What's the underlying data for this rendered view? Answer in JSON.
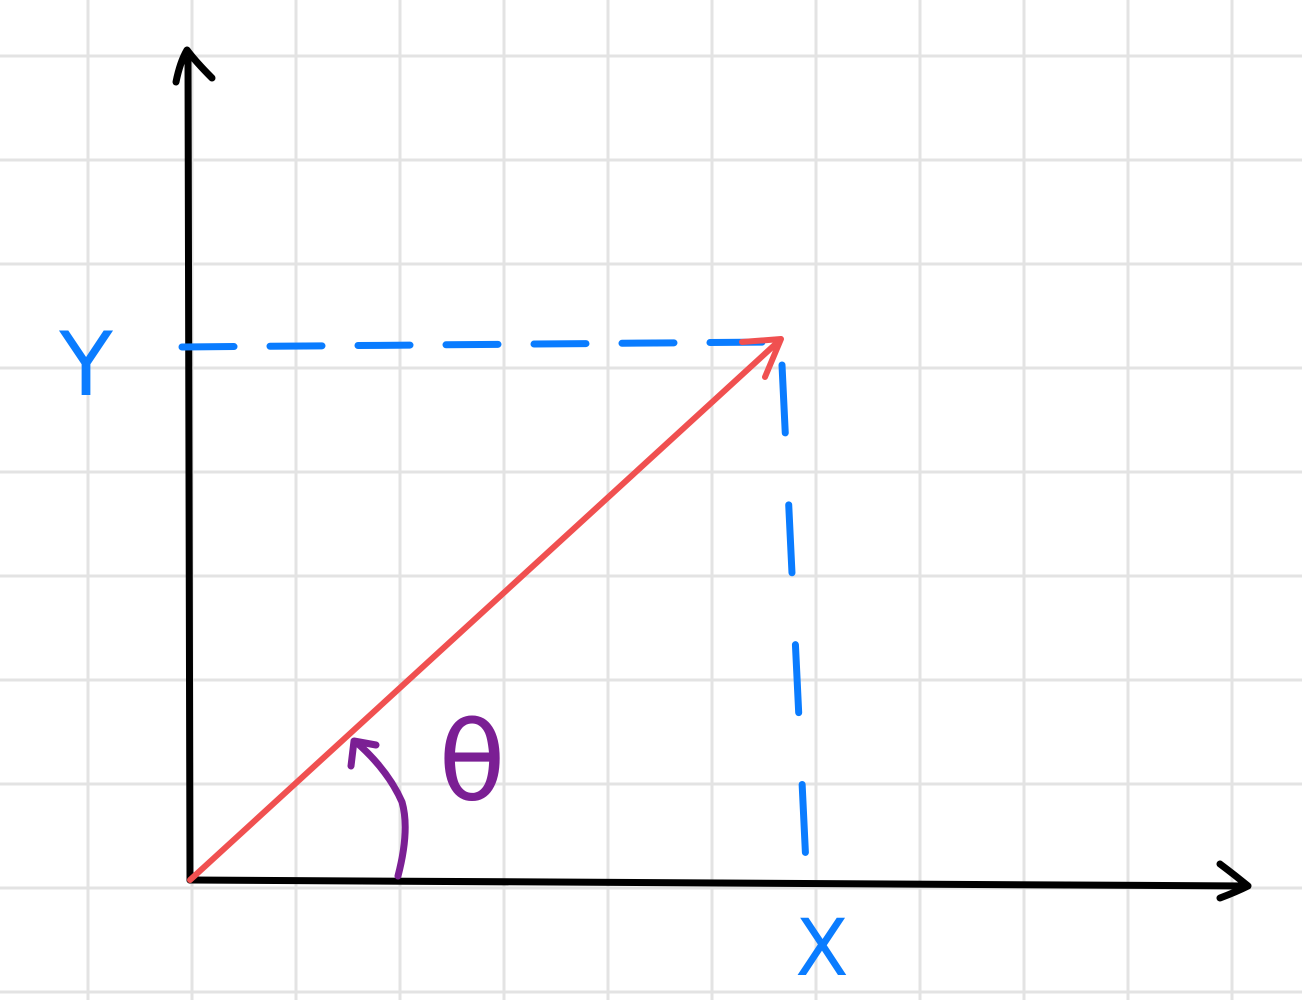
{
  "diagram": {
    "labels": {
      "x_component": "X",
      "y_component": "Y",
      "angle": "θ"
    },
    "colors": {
      "axes": "#000000",
      "vector": "#f05050",
      "components": "#0a7cff",
      "angle": "#7b1f94",
      "grid": "#e3e3e3",
      "background": "#ffffff"
    }
  }
}
